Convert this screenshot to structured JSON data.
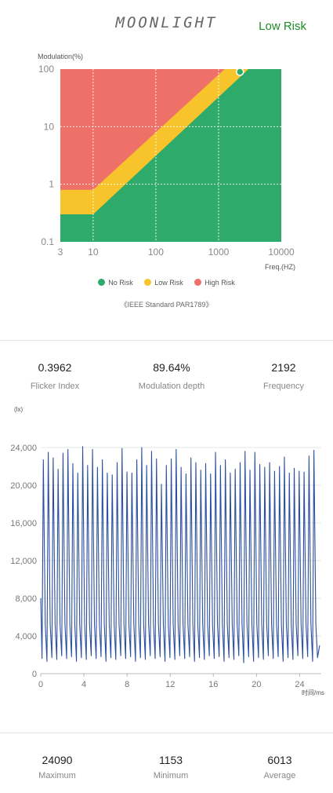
{
  "header": {
    "logo": "MOONLIGHT",
    "risk_status": "Low Risk",
    "risk_color": "#1f8a2a"
  },
  "risk_chart": {
    "ylabel": "Modulation(%)",
    "xlabel": "Freq.(HZ)",
    "y_ticks": [
      "100",
      "10",
      "1",
      "0.1"
    ],
    "x_ticks": [
      "3",
      "10",
      "100",
      "1000",
      "10000"
    ],
    "colors": {
      "no_risk": "#2eab6a",
      "low_risk": "#f8c42c",
      "high_risk": "#ef7068"
    },
    "marker": {
      "frequency": 2192,
      "modulation": 89.64
    },
    "legend": [
      {
        "label": "No Risk",
        "color": "#2eab6a"
      },
      {
        "label": "Low Risk",
        "color": "#f8c42c"
      },
      {
        "label": "High Risk",
        "color": "#ef7068"
      }
    ],
    "standard": "《IEEE Standard PAR1789》"
  },
  "flicker_stats": [
    {
      "value": "0.3962",
      "label": "Flicker Index"
    },
    {
      "value": "89.64%",
      "label": "Modulation depth"
    },
    {
      "value": "2192",
      "label": "Frequency"
    }
  ],
  "chart_data": {
    "type": "line",
    "ylabel": "(lx)",
    "xlabel": "时间/ms",
    "xlim": [
      0,
      26
    ],
    "ylim": [
      0,
      24000
    ],
    "y_ticks": [
      "0",
      "4,000",
      "8,000",
      "12,000",
      "16,000",
      "20,000",
      "24,000"
    ],
    "x_ticks": [
      "0",
      "4",
      "8",
      "12",
      "16",
      "20",
      "24"
    ],
    "line_color": "#2a4f9c",
    "period_ms": 0.456,
    "minimum": 1153,
    "peaks": [
      22700,
      23500,
      22900,
      21700,
      23400,
      23800,
      22300,
      21300,
      24090,
      22100,
      23800,
      21900,
      22700,
      21300,
      21100,
      22400,
      23900,
      21400,
      21300,
      22700,
      24000,
      22100,
      23600,
      22800,
      20100,
      22100,
      22800,
      23800,
      21900,
      21200,
      22900,
      22400,
      21600,
      22300,
      21200,
      23500,
      22100,
      22700,
      21300,
      21700,
      22400,
      23600,
      21600,
      23500,
      22200,
      21900,
      22400,
      21500,
      22000,
      23000,
      21300,
      21800,
      21500,
      21400,
      23100,
      23700,
      22500,
      21400,
      20800,
      22100,
      23000,
      22600,
      21700,
      21900,
      21800,
      23600,
      22600,
      22000,
      21400,
      21300,
      21000,
      23400,
      22600,
      21900,
      21500,
      21300,
      22800,
      23800,
      21200,
      20800,
      22200,
      23600,
      21900,
      21600,
      22600,
      21200,
      21000,
      23000,
      21600,
      21400,
      22800,
      22100,
      21500,
      23300,
      21000,
      22700,
      23200,
      21200,
      21100,
      21300,
      22000,
      23400,
      21800,
      21500,
      21300,
      22200,
      21900,
      21300,
      23500,
      21600,
      22200,
      22000,
      21600,
      21200,
      21600,
      21400,
      22200,
      23700,
      21800,
      21200,
      20900,
      22400,
      21300,
      21700,
      22000,
      21500,
      21200,
      23800,
      22600,
      21500,
      21300,
      21100,
      22200,
      21600,
      22500,
      21400,
      21100,
      21500,
      21500,
      21300,
      21500,
      21600,
      22400,
      21400,
      21500,
      21600,
      21200,
      21600,
      21400,
      21500,
      22500,
      21700,
      21300,
      21600,
      21800,
      23600,
      21700,
      21400,
      21700
    ]
  },
  "lux_stats": [
    {
      "value": "24090",
      "label": "Maximum"
    },
    {
      "value": "1153",
      "label": "Minimum"
    },
    {
      "value": "6013",
      "label": "Average"
    }
  ]
}
